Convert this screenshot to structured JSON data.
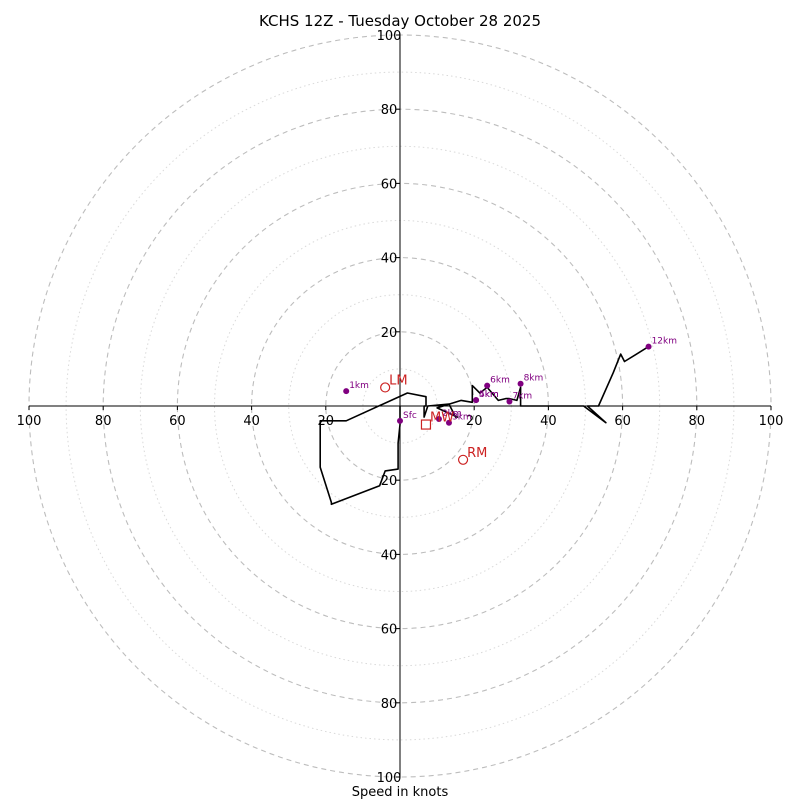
{
  "chart_data": {
    "type": "hodograph",
    "title": "KCHS 12Z - Tuesday October 28 2025",
    "xlabel": "Speed in knots",
    "units": "knots",
    "max_speed": 100,
    "major_rings": [
      20,
      40,
      60,
      80,
      100
    ],
    "minor_rings": [
      10,
      30,
      50,
      70,
      90
    ],
    "x_tick_labels": [
      "100",
      "80",
      "60",
      "40",
      "20",
      "20",
      "40",
      "60",
      "80",
      "100"
    ],
    "y_tick_labels": [
      "100",
      "80",
      "60",
      "40",
      "20",
      "20",
      "40",
      "60",
      "80",
      "100"
    ],
    "x_tick_values": [
      -100,
      -80,
      -60,
      -40,
      -20,
      20,
      40,
      60,
      80,
      100
    ],
    "y_tick_values": [
      100,
      80,
      60,
      40,
      20,
      -20,
      -40,
      -60,
      -80,
      -100
    ],
    "hodograph": {
      "u": [
        0,
        0,
        -0.5,
        -0.5,
        -4,
        -5.5,
        -18.5,
        -18.5,
        -21.5,
        -21.5,
        -14.5,
        2,
        7,
        7,
        6.5,
        6.5,
        7.5,
        13.2,
        15,
        15.5,
        10,
        16.5,
        19.5,
        19.5,
        19.5,
        20.5,
        21.5,
        23.5,
        26.5,
        28.5,
        29.5,
        31.5,
        32.5,
        32.5,
        39.5,
        49.5,
        55.5,
        50.5,
        53.5,
        57.5,
        59.5,
        60.5,
        67
      ],
      "v": [
        0,
        -5,
        -10,
        -17,
        -17.5,
        -21.5,
        -26.5,
        -26,
        -16.5,
        -4,
        -4,
        3.5,
        2.5,
        0,
        0,
        -3,
        0,
        0.5,
        -3,
        -3,
        -0.5,
        1.5,
        1,
        4.5,
        5.5,
        4.5,
        3.5,
        5,
        1.5,
        2,
        2,
        1.5,
        5,
        0,
        0,
        0,
        -4.5,
        0,
        0,
        9,
        14,
        12,
        16
      ]
    },
    "height_markers": [
      {
        "label": "Sfc",
        "u": 0,
        "v": -4
      },
      {
        "label": "1km",
        "u": -14.5,
        "v": 4
      },
      {
        "label": "2km",
        "u": 10.5,
        "v": -3.5
      },
      {
        "label": "3km",
        "u": 13.2,
        "v": -4.5
      },
      {
        "label": "4km",
        "u": 20.5,
        "v": 1.6
      },
      {
        "label": "5km",
        "u": 20.5,
        "v": 1.6
      },
      {
        "label": "6km",
        "u": 23.5,
        "v": 5.5
      },
      {
        "label": "7km",
        "u": 29.5,
        "v": 1.2
      },
      {
        "label": "8km",
        "u": 32.5,
        "v": 6
      },
      {
        "label": "12km",
        "u": 67,
        "v": 16
      }
    ],
    "storm_motions": [
      {
        "label": "LM",
        "u": -4,
        "v": 5,
        "marker": "circle"
      },
      {
        "label": "MW",
        "u": 7,
        "v": -5,
        "marker": "square"
      },
      {
        "label": "RM",
        "u": 17,
        "v": -14.5,
        "marker": "circle"
      }
    ],
    "colors": {
      "rings": "#bdbdbd",
      "hodograph": "#000000",
      "height_markers": "#800080",
      "storm_motion": "#cc2222"
    }
  }
}
